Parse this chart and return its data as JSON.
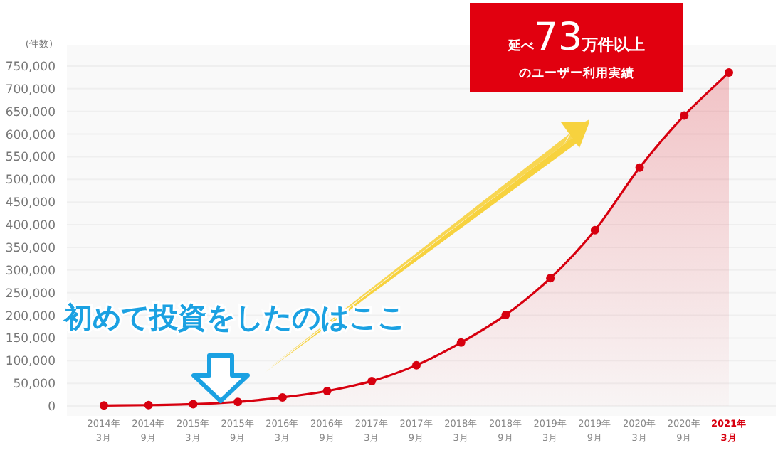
{
  "chart_data": {
    "type": "area",
    "ylabel": "(件数)",
    "categories": [
      "2014年\n3月",
      "2014年\n9月",
      "2015年\n3月",
      "2015年\n9月",
      "2016年\n3月",
      "2016年\n9月",
      "2017年\n3月",
      "2017年\n9月",
      "2018年\n3月",
      "2018年\n9月",
      "2019年\n3月",
      "2019年\n9月",
      "2020年\n3月",
      "2020年\n9月",
      "2021年\n3月"
    ],
    "series": [
      {
        "color": "#d7000f",
        "values": [
          1000,
          2000,
          4000,
          9000,
          19000,
          33000,
          55000,
          90000,
          140000,
          201000,
          282000,
          388000,
          526000,
          641000,
          736000
        ]
      }
    ],
    "ylim": [
      0,
      750000
    ],
    "yticks": [
      0,
      {
        "value": 50000,
        "label": "50,000"
      },
      {
        "value": 100000,
        "label": "100,000"
      },
      {
        "value": 150000,
        "label": "150,000"
      },
      {
        "value": 200000,
        "label": "200,000"
      },
      {
        "value": 250000,
        "label": "250,000"
      },
      {
        "value": 300000,
        "label": "300,000"
      },
      {
        "value": 350000,
        "label": "350,000"
      },
      {
        "value": 400000,
        "label": "400,000"
      },
      {
        "value": 450000,
        "label": "450,000"
      },
      {
        "value": 500000,
        "label": "500,000"
      },
      {
        "value": 550000,
        "label": "550,000"
      },
      {
        "value": 600000,
        "label": "600,000"
      },
      {
        "value": 650000,
        "label": "650,000"
      },
      {
        "value": 700000,
        "label": "700,000"
      },
      {
        "value": 750000,
        "label": "750,000"
      }
    ],
    "grid": "y",
    "marker": "circle",
    "line_style": "solid",
    "annotations": [
      "延べ73万件以上",
      "のユーザー利用実績",
      "初めて投資をしたのはここ"
    ]
  }
}
